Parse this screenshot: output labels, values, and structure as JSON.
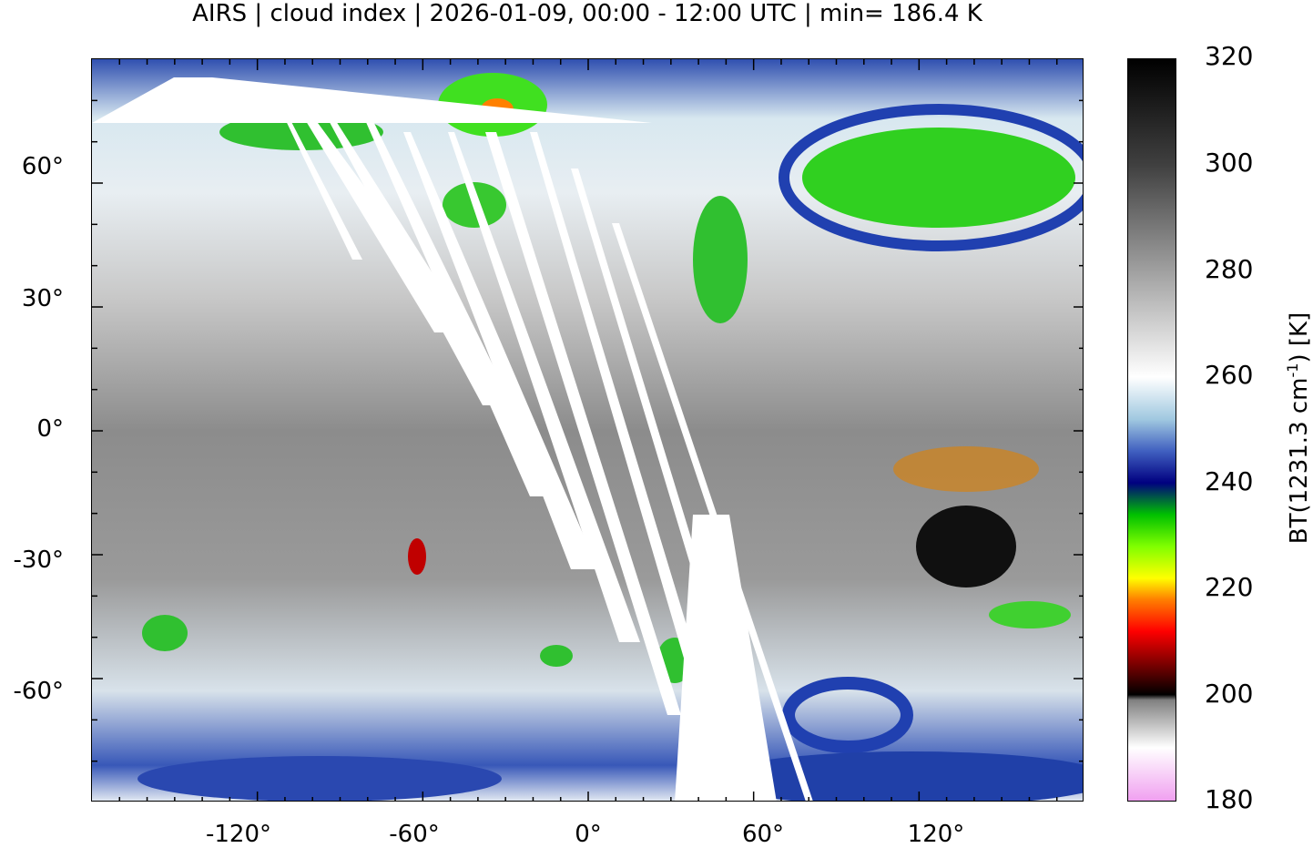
{
  "title": "AIRS | cloud index | 2026-01-09, 00:00 - 12:00 UTC | min= 186.4 K",
  "map": {
    "projection": "equirectangular",
    "lon_range": [
      -180,
      180
    ],
    "lat_range": [
      -90,
      90
    ],
    "lat_ticks": [
      "60°",
      "30°",
      "0°",
      "-30°",
      "-60°"
    ],
    "lat_values": [
      60,
      30,
      0,
      -30,
      -60
    ],
    "lon_ticks": [
      "-120°",
      "-60°",
      "0°",
      "60°",
      "120°"
    ],
    "lon_values": [
      -120,
      -60,
      0,
      60,
      120
    ],
    "coastline_color": "#c8c8c8",
    "swath_gap_color": "#ffffff"
  },
  "colorbar": {
    "unit_label": "BT(1231.3 cm-1) [K]",
    "unit_main": "BT(1231.3 cm",
    "unit_sup": "-1",
    "unit_tail": ") [K]",
    "ticks": [
      "320",
      "300",
      "280",
      "260",
      "240",
      "220",
      "200",
      "180"
    ],
    "tick_values": [
      320,
      300,
      280,
      260,
      240,
      220,
      200,
      180
    ],
    "range": [
      180,
      320
    ],
    "stops": [
      {
        "value": 180,
        "color": "#f0a0f0"
      },
      {
        "value": 190,
        "color": "#ffffff"
      },
      {
        "value": 199,
        "color": "#808080"
      },
      {
        "value": 200,
        "color": "#000000"
      },
      {
        "value": 206,
        "color": "#800000"
      },
      {
        "value": 212,
        "color": "#ff0000"
      },
      {
        "value": 218,
        "color": "#ff8000"
      },
      {
        "value": 222,
        "color": "#ffff00"
      },
      {
        "value": 228,
        "color": "#80ff00"
      },
      {
        "value": 234,
        "color": "#00c000"
      },
      {
        "value": 240,
        "color": "#000080"
      },
      {
        "value": 246,
        "color": "#4060c0"
      },
      {
        "value": 252,
        "color": "#a0c8e0"
      },
      {
        "value": 260,
        "color": "#ffffff"
      },
      {
        "value": 280,
        "color": "#a0a0a0"
      },
      {
        "value": 300,
        "color": "#404040"
      },
      {
        "value": 320,
        "color": "#000000"
      }
    ]
  }
}
